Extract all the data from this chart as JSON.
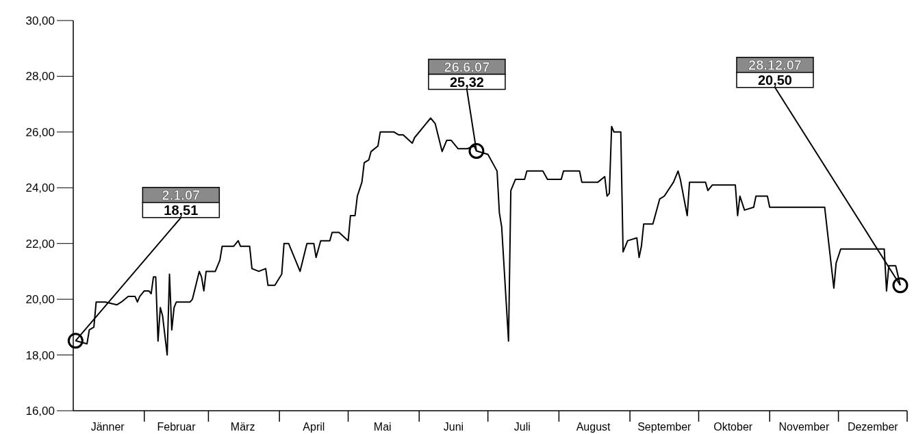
{
  "chart_data": {
    "type": "line",
    "x": [
      "--01-02",
      "--01-07",
      "--01-08",
      "--01-10",
      "--01-11",
      "--01-12",
      "--01-15",
      "--01-20",
      "--01-22",
      "--01-25",
      "--01-28",
      "--01-29",
      "--01-30",
      "--02-01",
      "--02-03",
      "--02-04",
      "--02-05",
      "--02-06",
      "--02-07",
      "--02-08",
      "--02-09",
      "--02-11",
      "--02-12",
      "--02-13",
      "--02-14",
      "--02-15",
      "--02-17",
      "--02-21",
      "--02-22",
      "--02-25",
      "--02-26",
      "--02-27",
      "--02-28",
      "--03-04",
      "--03-06",
      "--03-07",
      "--03-12",
      "--03-14",
      "--03-15",
      "--03-19",
      "--03-20",
      "--03-23",
      "--03-26",
      "--03-27",
      "--03-30",
      "--04-02",
      "--04-03",
      "--04-05",
      "--04-10",
      "--04-13",
      "--04-16",
      "--04-17",
      "--04-19",
      "--04-23",
      "--04-24",
      "--04-27",
      "--05-01",
      "--05-02",
      "--05-04",
      "--05-05",
      "--05-07",
      "--05-08",
      "--05-10",
      "--05-11",
      "--05-14",
      "--05-15",
      "--05-21",
      "--05-23",
      "--05-25",
      "--05-29",
      "--05-30",
      "--06-04",
      "--06-06",
      "--06-08",
      "--06-11",
      "--06-13",
      "--06-15",
      "--06-18",
      "--06-22",
      "--06-25",
      "--06-26",
      "--07-01",
      "--07-05",
      "--07-06",
      "--07-07",
      "--07-10",
      "--07-11",
      "--07-13",
      "--07-17",
      "--07-18",
      "--07-25",
      "--07-27",
      "--08-02",
      "--08-03",
      "--08-10",
      "--08-11",
      "--08-18",
      "--08-21",
      "--08-22",
      "--08-23",
      "--08-24",
      "--08-25",
      "--08-28",
      "--08-29",
      "--08-31",
      "--09-04",
      "--09-05",
      "--09-06",
      "--09-07",
      "--09-11",
      "--09-14",
      "--09-16",
      "--09-20",
      "--09-22",
      "--09-23",
      "--09-26",
      "--09-27",
      "--10-03",
      "--10-04",
      "--10-05",
      "--10-07",
      "--10-17",
      "--10-18",
      "--10-19",
      "--10-21",
      "--10-25",
      "--10-26",
      "--10-31",
      "--11-01",
      "--11-25",
      "--11-29",
      "--11-30",
      "--12-02",
      "--12-21",
      "--12-22",
      "--12-23",
      "--12-26",
      "--12-28"
    ],
    "series": [
      {
        "color": "#000000",
        "values": [
          18.51,
          18.4,
          18.9,
          19.0,
          19.9,
          19.9,
          19.9,
          19.8,
          19.9,
          20.1,
          20.1,
          19.9,
          20.1,
          20.3,
          20.3,
          20.2,
          20.8,
          20.8,
          18.5,
          19.7,
          19.4,
          18.0,
          20.9,
          18.9,
          19.7,
          19.9,
          19.9,
          19.9,
          20.0,
          21.0,
          20.8,
          20.3,
          21.0,
          21.0,
          21.4,
          21.9,
          21.9,
          22.1,
          21.9,
          21.9,
          21.1,
          21.0,
          21.1,
          20.5,
          20.5,
          20.9,
          22.0,
          22.0,
          21.0,
          22.0,
          22.0,
          21.5,
          22.1,
          22.1,
          22.4,
          22.4,
          22.1,
          23.0,
          23.0,
          23.7,
          24.2,
          24.9,
          25.0,
          25.3,
          25.5,
          26.0,
          26.0,
          25.9,
          25.9,
          25.6,
          25.8,
          26.3,
          26.5,
          26.3,
          25.3,
          25.7,
          25.7,
          25.4,
          25.4,
          25.5,
          25.32,
          25.2,
          24.6,
          23.1,
          22.6,
          18.5,
          23.9,
          24.3,
          24.3,
          24.6,
          24.6,
          24.3,
          24.3,
          24.6,
          24.6,
          24.2,
          24.2,
          24.4,
          23.7,
          23.8,
          26.2,
          26.0,
          26.0,
          21.7,
          22.1,
          22.2,
          21.5,
          21.9,
          22.7,
          22.7,
          23.6,
          23.7,
          24.2,
          24.6,
          24.3,
          23.0,
          24.2,
          24.2,
          24.2,
          23.9,
          24.1,
          24.1,
          23.0,
          23.7,
          23.2,
          23.3,
          23.7,
          23.7,
          23.3,
          23.3,
          20.4,
          21.3,
          21.8,
          21.8,
          20.3,
          21.2,
          21.2,
          20.5
        ]
      }
    ],
    "xlim": [
      "--01-01",
      "--12-31"
    ],
    "xticks": [
      {
        "value": "--01-16",
        "label": "Jänner"
      },
      {
        "value": "--02-01",
        "label": null
      },
      {
        "value": "--02-15",
        "label": "Februar"
      },
      {
        "value": "--03-01",
        "label": null
      },
      {
        "value": "--03-16",
        "label": "März"
      },
      {
        "value": "--04-01",
        "label": null
      },
      {
        "value": "--04-16",
        "label": "April"
      },
      {
        "value": "--05-01",
        "label": null
      },
      {
        "value": "--05-16",
        "label": "Mai"
      },
      {
        "value": "--06-01",
        "label": null
      },
      {
        "value": "--06-16",
        "label": "Juni"
      },
      {
        "value": "--07-01",
        "label": null
      },
      {
        "value": "--07-16",
        "label": "Juli"
      },
      {
        "value": "--08-01",
        "label": null
      },
      {
        "value": "--08-16",
        "label": "August"
      },
      {
        "value": "--09-01",
        "label": null
      },
      {
        "value": "--09-16",
        "label": "September"
      },
      {
        "value": "--10-01",
        "label": null
      },
      {
        "value": "--10-16",
        "label": "Oktober"
      },
      {
        "value": "--11-01",
        "label": null
      },
      {
        "value": "--11-16",
        "label": "November"
      },
      {
        "value": "--12-01",
        "label": null
      },
      {
        "value": "--12-16",
        "label": "Dezember"
      },
      {
        "value": "--12-31",
        "label": null
      }
    ],
    "ylim": [
      16,
      30
    ],
    "yticks": [
      {
        "value": 16,
        "label": "16,00"
      },
      {
        "value": 18,
        "label": "18,00"
      },
      {
        "value": 20,
        "label": "20,00"
      },
      {
        "value": 22,
        "label": "22,00"
      },
      {
        "value": 24,
        "label": "24,00"
      },
      {
        "value": 26,
        "label": "26,00"
      },
      {
        "value": 28,
        "label": "28,00"
      },
      {
        "value": 30,
        "label": "30,00"
      }
    ],
    "grid": false,
    "legend": false,
    "annotations": [
      {
        "text": "2.1.07\n18,51",
        "x": "--01-02",
        "y": 18.51
      },
      {
        "text": "26.6.07\n25,32",
        "x": "--06-26",
        "y": 25.32
      },
      {
        "text": "28.12.07\n20,50",
        "x": "--12-28",
        "y": 20.5
      }
    ]
  }
}
